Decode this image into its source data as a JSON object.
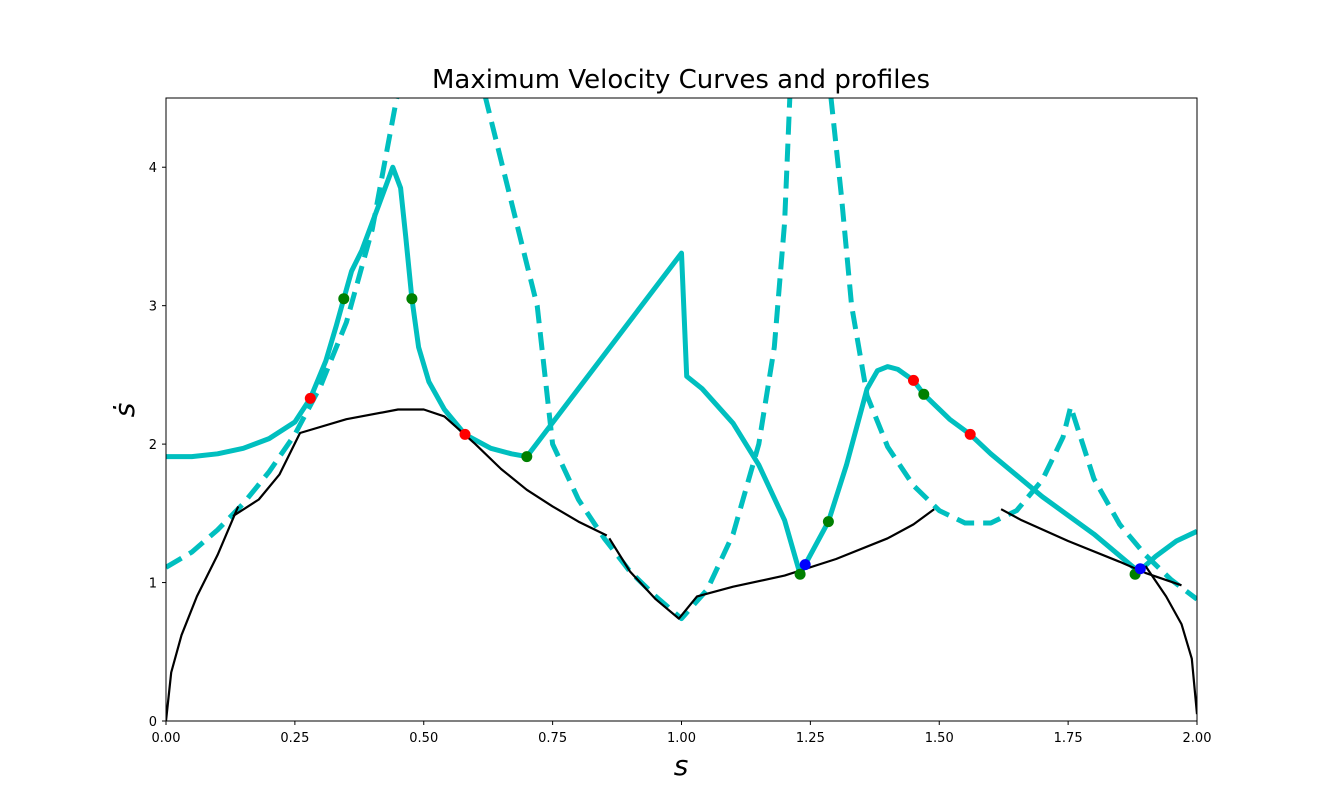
{
  "chart_data": {
    "type": "line",
    "title": "Maximum Velocity Curves and profiles",
    "xlabel": "s",
    "ylabel": "ṡ",
    "xlim": [
      0,
      2
    ],
    "ylim": [
      0,
      4.5
    ],
    "x_ticks": [
      "0.00",
      "0.25",
      "0.50",
      "0.75",
      "1.00",
      "1.25",
      "1.50",
      "1.75",
      "2.00"
    ],
    "y_ticks": [
      "0",
      "1",
      "2",
      "3",
      "4"
    ],
    "grid": false,
    "legend": "none",
    "colors": {
      "cyan": "#00bfbf",
      "black": "#000000",
      "red": "#ff0000",
      "green": "#008000",
      "blue": "#0000ff"
    },
    "series": [
      {
        "style": "cyan-dashed",
        "points": [
          [
            0,
            1.11
          ],
          [
            0.05,
            1.22
          ],
          [
            0.1,
            1.38
          ],
          [
            0.15,
            1.57
          ],
          [
            0.2,
            1.8
          ],
          [
            0.25,
            2.07
          ],
          [
            0.3,
            2.42
          ],
          [
            0.35,
            2.88
          ],
          [
            0.4,
            3.55
          ],
          [
            0.45,
            4.55
          ],
          [
            0.46,
            4.9
          ]
        ]
      },
      {
        "style": "cyan-dashed",
        "points": [
          [
            0.6,
            4.9
          ],
          [
            0.62,
            4.5
          ],
          [
            0.66,
            3.9
          ],
          [
            0.7,
            3.3
          ],
          [
            0.72,
            3.0
          ],
          [
            0.75,
            2.0
          ],
          [
            0.8,
            1.6
          ],
          [
            0.85,
            1.32
          ],
          [
            0.9,
            1.08
          ],
          [
            0.95,
            0.9
          ],
          [
            1.0,
            0.74
          ],
          [
            1.05,
            0.95
          ],
          [
            1.1,
            1.35
          ],
          [
            1.15,
            2.0
          ],
          [
            1.18,
            2.7
          ],
          [
            1.2,
            3.6
          ],
          [
            1.21,
            4.5
          ],
          [
            1.22,
            4.9
          ]
        ]
      },
      {
        "style": "cyan-dashed",
        "points": [
          [
            1.28,
            4.9
          ],
          [
            1.29,
            4.5
          ],
          [
            1.31,
            3.8
          ],
          [
            1.33,
            3.0
          ],
          [
            1.36,
            2.35
          ],
          [
            1.4,
            1.98
          ],
          [
            1.45,
            1.7
          ],
          [
            1.5,
            1.52
          ],
          [
            1.55,
            1.43
          ],
          [
            1.6,
            1.43
          ],
          [
            1.65,
            1.52
          ],
          [
            1.7,
            1.74
          ],
          [
            1.74,
            2.05
          ],
          [
            1.755,
            2.27
          ],
          [
            1.8,
            1.75
          ],
          [
            1.85,
            1.42
          ],
          [
            1.9,
            1.2
          ],
          [
            1.95,
            1.02
          ],
          [
            2.0,
            0.88
          ]
        ]
      },
      {
        "style": "cyan-solid",
        "points": [
          [
            0,
            1.91
          ],
          [
            0.05,
            1.91
          ],
          [
            0.1,
            1.93
          ],
          [
            0.15,
            1.97
          ],
          [
            0.2,
            2.04
          ],
          [
            0.25,
            2.16
          ],
          [
            0.28,
            2.33
          ],
          [
            0.31,
            2.6
          ],
          [
            0.33,
            2.85
          ],
          [
            0.345,
            3.05
          ],
          [
            0.36,
            3.25
          ],
          [
            0.38,
            3.4
          ],
          [
            0.41,
            3.7
          ],
          [
            0.44,
            4.0
          ],
          [
            0.455,
            3.85
          ],
          [
            0.465,
            3.5
          ],
          [
            0.477,
            3.05
          ],
          [
            0.49,
            2.7
          ],
          [
            0.51,
            2.45
          ],
          [
            0.54,
            2.25
          ],
          [
            0.58,
            2.07
          ],
          [
            0.63,
            1.97
          ],
          [
            0.67,
            1.93
          ],
          [
            0.7,
            1.91
          ],
          [
            1.0,
            3.38
          ],
          [
            1.01,
            2.49
          ],
          [
            1.04,
            2.4
          ],
          [
            1.1,
            2.15
          ],
          [
            1.15,
            1.85
          ],
          [
            1.2,
            1.45
          ],
          [
            1.23,
            1.06
          ],
          [
            1.24,
            1.13
          ],
          [
            1.285,
            1.44
          ],
          [
            1.32,
            1.85
          ],
          [
            1.36,
            2.4
          ],
          [
            1.38,
            2.53
          ],
          [
            1.4,
            2.56
          ],
          [
            1.42,
            2.54
          ],
          [
            1.45,
            2.46
          ],
          [
            1.47,
            2.36
          ],
          [
            1.52,
            2.18
          ],
          [
            1.56,
            2.07
          ],
          [
            1.6,
            1.93
          ],
          [
            1.7,
            1.62
          ],
          [
            1.8,
            1.35
          ],
          [
            1.88,
            1.1
          ],
          [
            1.89,
            1.09
          ],
          [
            1.92,
            1.19
          ],
          [
            1.96,
            1.3
          ],
          [
            2.0,
            1.37
          ]
        ]
      },
      {
        "style": "black-solid",
        "points": [
          [
            0,
            0
          ],
          [
            0.01,
            0.35
          ],
          [
            0.03,
            0.62
          ],
          [
            0.06,
            0.9
          ],
          [
            0.1,
            1.2
          ],
          [
            0.14,
            1.55
          ]
        ]
      },
      {
        "style": "black-solid",
        "points": [
          [
            0.13,
            1.48
          ],
          [
            0.18,
            1.6
          ],
          [
            0.22,
            1.78
          ],
          [
            0.26,
            2.08
          ],
          [
            0.35,
            2.18
          ],
          [
            0.45,
            2.25
          ],
          [
            0.5,
            2.25
          ],
          [
            0.54,
            2.2
          ],
          [
            0.6,
            2.0
          ],
          [
            0.65,
            1.82
          ],
          [
            0.7,
            1.67
          ],
          [
            0.75,
            1.55
          ],
          [
            0.8,
            1.44
          ],
          [
            0.855,
            1.34
          ]
        ]
      },
      {
        "style": "black-solid",
        "points": [
          [
            0.86,
            1.32
          ],
          [
            0.9,
            1.08
          ],
          [
            0.95,
            0.88
          ],
          [
            0.995,
            0.74
          ],
          [
            1.03,
            0.9
          ],
          [
            1.1,
            0.97
          ],
          [
            1.2,
            1.05
          ],
          [
            1.3,
            1.17
          ],
          [
            1.4,
            1.32
          ],
          [
            1.45,
            1.42
          ],
          [
            1.49,
            1.53
          ]
        ]
      },
      {
        "style": "black-solid",
        "points": [
          [
            1.62,
            1.53
          ],
          [
            1.66,
            1.45
          ],
          [
            1.75,
            1.3
          ],
          [
            1.85,
            1.15
          ],
          [
            1.9,
            1.07
          ],
          [
            1.97,
            0.98
          ]
        ]
      },
      {
        "style": "black-solid",
        "points": [
          [
            1.9,
            1.12
          ],
          [
            1.94,
            0.9
          ],
          [
            1.97,
            0.7
          ],
          [
            1.99,
            0.45
          ],
          [
            2.0,
            0.05
          ]
        ]
      }
    ],
    "markers": [
      {
        "color": "red",
        "x": 0.28,
        "y": 2.33
      },
      {
        "color": "red",
        "x": 0.58,
        "y": 2.07
      },
      {
        "color": "red",
        "x": 1.45,
        "y": 2.46
      },
      {
        "color": "red",
        "x": 1.56,
        "y": 2.07
      },
      {
        "color": "green",
        "x": 0.345,
        "y": 3.05
      },
      {
        "color": "green",
        "x": 0.477,
        "y": 3.05
      },
      {
        "color": "green",
        "x": 0.7,
        "y": 1.91
      },
      {
        "color": "green",
        "x": 1.23,
        "y": 1.06
      },
      {
        "color": "green",
        "x": 1.285,
        "y": 1.44
      },
      {
        "color": "green",
        "x": 1.47,
        "y": 2.36
      },
      {
        "color": "green",
        "x": 1.88,
        "y": 1.06
      },
      {
        "color": "blue",
        "x": 1.24,
        "y": 1.13
      },
      {
        "color": "blue",
        "x": 1.89,
        "y": 1.1
      }
    ]
  }
}
